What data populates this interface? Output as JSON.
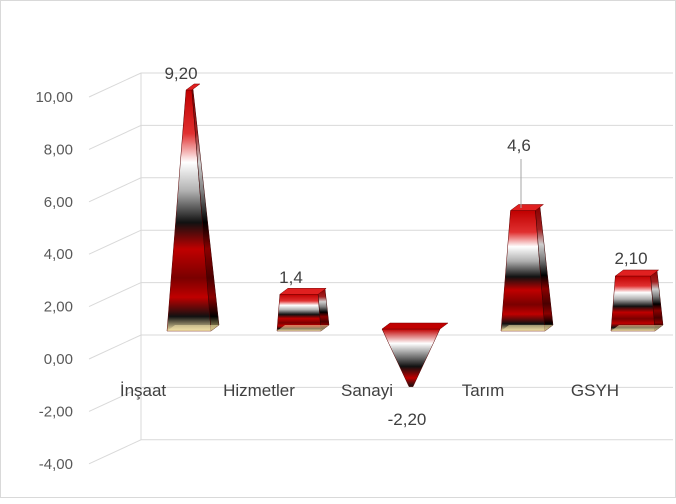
{
  "chart_data": {
    "type": "bar",
    "style": "3d-pyramid",
    "categories": [
      "İnşaat",
      "Hizmetler",
      "Sanayi",
      "Tarım",
      "GSYH"
    ],
    "values": [
      9.2,
      1.4,
      -2.2,
      4.6,
      2.1
    ],
    "data_labels": [
      "9,20",
      "1,4",
      "-2,20",
      "4,6",
      "2,10"
    ],
    "y_ticks": [
      "10,00",
      "8,00",
      "6,00",
      "4,00",
      "2,00",
      "0,00",
      "-2,00",
      "-4,00"
    ],
    "ylim": [
      -4,
      10
    ],
    "grid": true,
    "legend": "none",
    "colors": {
      "red": "#c00000",
      "dark_red": "#7a0000",
      "black": "#111111",
      "white": "#ffffff",
      "base": "#f2e2a8",
      "grid": "#d9d9d9",
      "axis_text": "#595959",
      "label_text": "#404040"
    }
  }
}
